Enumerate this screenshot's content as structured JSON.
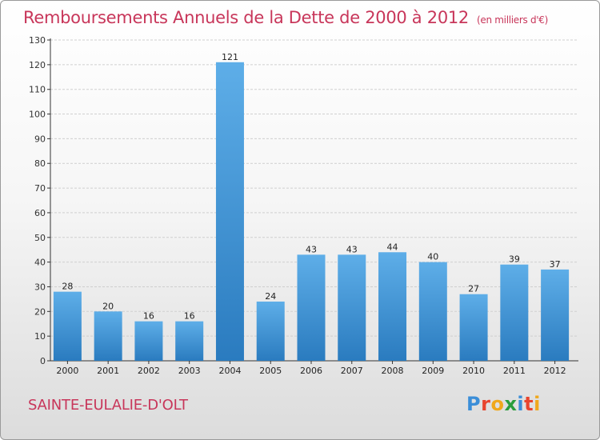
{
  "header": {
    "title": "Remboursements Annuels de la Dette de 2000 à 2012",
    "unit": "(en milliers d'€)"
  },
  "footer": {
    "commune": "SAINTE-EULALIE-D'OLT",
    "logo_text": "Proxiti",
    "logo_colors": [
      "#3b8ed8",
      "#e8442e",
      "#f0a81c",
      "#2a9d3c",
      "#3b8ed8",
      "#e8442e",
      "#f0a81c"
    ]
  },
  "colors": {
    "bar_top": "#5eaee8",
    "bar_bottom": "#2a7bbf",
    "title": "#c8365a",
    "axis": "#333333",
    "grid": "#cfcfcf"
  },
  "chart_data": {
    "type": "bar",
    "categories": [
      "2000",
      "2001",
      "2002",
      "2003",
      "2004",
      "2005",
      "2006",
      "2007",
      "2008",
      "2009",
      "2010",
      "2011",
      "2012"
    ],
    "values": [
      28,
      20,
      16,
      16,
      121,
      24,
      43,
      43,
      44,
      40,
      27,
      39,
      37
    ],
    "ylim": [
      0,
      130
    ],
    "yticks": [
      0,
      10,
      20,
      30,
      40,
      50,
      60,
      70,
      80,
      90,
      100,
      110,
      120,
      130
    ],
    "grid": true
  }
}
